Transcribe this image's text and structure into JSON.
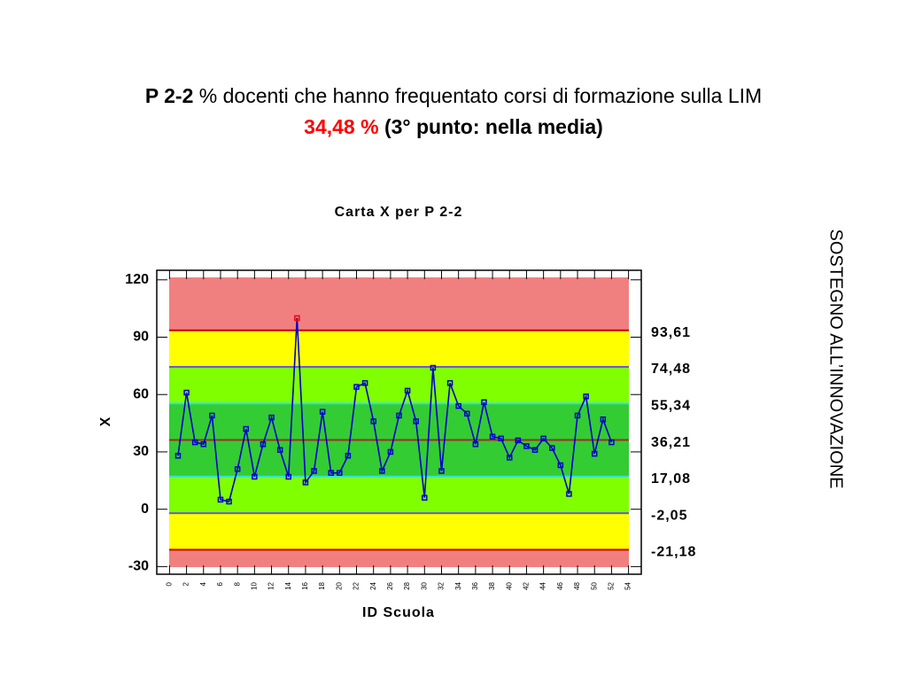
{
  "header": {
    "code": "P 2-2",
    "title": "% docenti che hanno frequentato corsi di formazione sulla LIM",
    "value": "34,48 %",
    "note": "(3° punto: nella media)"
  },
  "side_label": "SOSTEGNO ALL’INNOVAZIONE",
  "chart_data": {
    "type": "line",
    "title": "Carta X per P 2-2",
    "x_label": "ID Scuola",
    "y_label": "X",
    "x": [
      1,
      2,
      3,
      4,
      5,
      6,
      7,
      8,
      9,
      10,
      11,
      12,
      13,
      14,
      15,
      16,
      17,
      18,
      19,
      20,
      21,
      22,
      23,
      24,
      25,
      26,
      27,
      28,
      29,
      30,
      31,
      32,
      33,
      34,
      35,
      36,
      37,
      38,
      39,
      40,
      41,
      42,
      43,
      44,
      45,
      46,
      47,
      48,
      49,
      50,
      51,
      52
    ],
    "series": [
      {
        "color": "#0000cc",
        "outlier_color": "#ff0000",
        "values": [
          28,
          61,
          35,
          34,
          49,
          5,
          4,
          21,
          42,
          17,
          34,
          48,
          31,
          17,
          100,
          14,
          20,
          51,
          19,
          19,
          28,
          64,
          66,
          46,
          20,
          30,
          49,
          62,
          46,
          6,
          74,
          20,
          66,
          54,
          50,
          34,
          56,
          38,
          37,
          27,
          36,
          33,
          31,
          37,
          32,
          23,
          8,
          49,
          59,
          29,
          47,
          35
        ]
      }
    ],
    "control_lines": [
      {
        "value": 93.61,
        "label": "93,61",
        "color": "#cc0000"
      },
      {
        "value": 74.48,
        "label": "74,48",
        "color": "#6a5acd"
      },
      {
        "value": 55.34,
        "label": "55,34",
        "color": "#33e0e0"
      },
      {
        "value": 36.21,
        "label": "36,21",
        "color": "#a52a2a"
      },
      {
        "value": 17.08,
        "label": "17,08",
        "color": "#33e0e0"
      },
      {
        "value": -2.05,
        "label": "-2,05",
        "color": "#6a5acd"
      },
      {
        "value": -21.18,
        "label": "-21,18",
        "color": "#cc0000"
      }
    ],
    "band_colors": [
      "#f08080",
      "#ffff00",
      "#80ff00",
      "#33cc33",
      "#33cc33",
      "#80ff00",
      "#ffff00",
      "#f08080"
    ],
    "xlim": [
      -1.5,
      55.5
    ],
    "ylim": [
      -34,
      125
    ],
    "xticks": [
      0,
      2,
      4,
      6,
      8,
      10,
      12,
      14,
      16,
      18,
      20,
      22,
      24,
      26,
      28,
      30,
      32,
      34,
      36,
      38,
      40,
      42,
      44,
      46,
      48,
      50,
      52,
      54
    ],
    "yticks": [
      -30,
      0,
      30,
      60,
      90,
      120
    ]
  }
}
